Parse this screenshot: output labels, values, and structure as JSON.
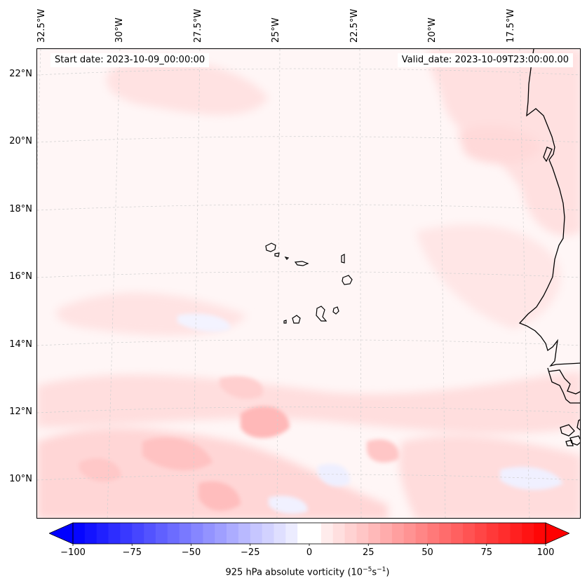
{
  "map": {
    "start_date": "Start date: 2023-10-09_00:00:00",
    "valid_date": "Valid_date: 2023-10-09T23:00:00.00",
    "lon_labels": [
      "32.5°W",
      "30°W",
      "27.5°W",
      "25°W",
      "22.5°W",
      "20°W",
      "17.5°W"
    ],
    "lat_labels": [
      "22°N",
      "20°N",
      "18°N",
      "16°N",
      "14°N",
      "12°N",
      "10°N"
    ],
    "field": "925 hPa absolute vorticity",
    "coast_color": "#000000",
    "grid_color": "#bdbdbd"
  },
  "colorbar": {
    "title_prefix": "925 hPa absolute vorticity (10",
    "title_exp1": "−5",
    "title_mid": "s",
    "title_exp2": "−1",
    "title_suffix": ")",
    "tick_labels": [
      "−100",
      "−75",
      "−50",
      "−25",
      "0",
      "25",
      "50",
      "75",
      "100"
    ],
    "tick_values": [
      -100,
      -75,
      -50,
      -25,
      0,
      25,
      50,
      75,
      100
    ],
    "vmin": -100,
    "vmax": 100,
    "step": 5,
    "low_color": "#0000ff",
    "mid_color": "#ffffff",
    "high_color": "#ff0000"
  }
}
